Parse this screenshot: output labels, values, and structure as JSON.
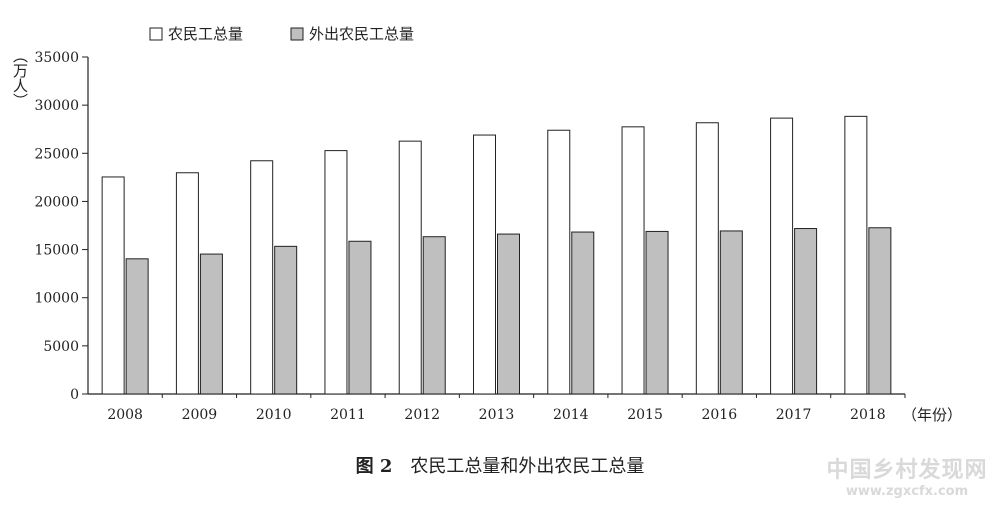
{
  "chart_data": {
    "type": "bar",
    "categories": [
      "2008",
      "2009",
      "2010",
      "2011",
      "2012",
      "2013",
      "2014",
      "2015",
      "2016",
      "2017",
      "2018"
    ],
    "series": [
      {
        "name": "农民工总量",
        "color": "#ffffff",
        "values": [
          22542,
          22978,
          24223,
          25278,
          26261,
          26894,
          27395,
          27747,
          28171,
          28652,
          28836
        ]
      },
      {
        "name": "外出农民工总量",
        "color": "#bfbfbf",
        "values": [
          14041,
          14533,
          15335,
          15863,
          16336,
          16610,
          16821,
          16884,
          16934,
          17185,
          17266
        ]
      }
    ],
    "yticks": [
      0,
      5000,
      10000,
      15000,
      20000,
      25000,
      30000,
      35000
    ],
    "ylim": [
      0,
      35000
    ],
    "ylabel": "（万人）",
    "xlabel": "（年份）",
    "legend_position": "top-left",
    "grid": false
  },
  "caption": {
    "figure_number": "图 2",
    "title": "农民工总量和外出农民工总量"
  },
  "watermark": {
    "main": "中国乡村发现网",
    "url": "www.zgxcfx.com"
  }
}
